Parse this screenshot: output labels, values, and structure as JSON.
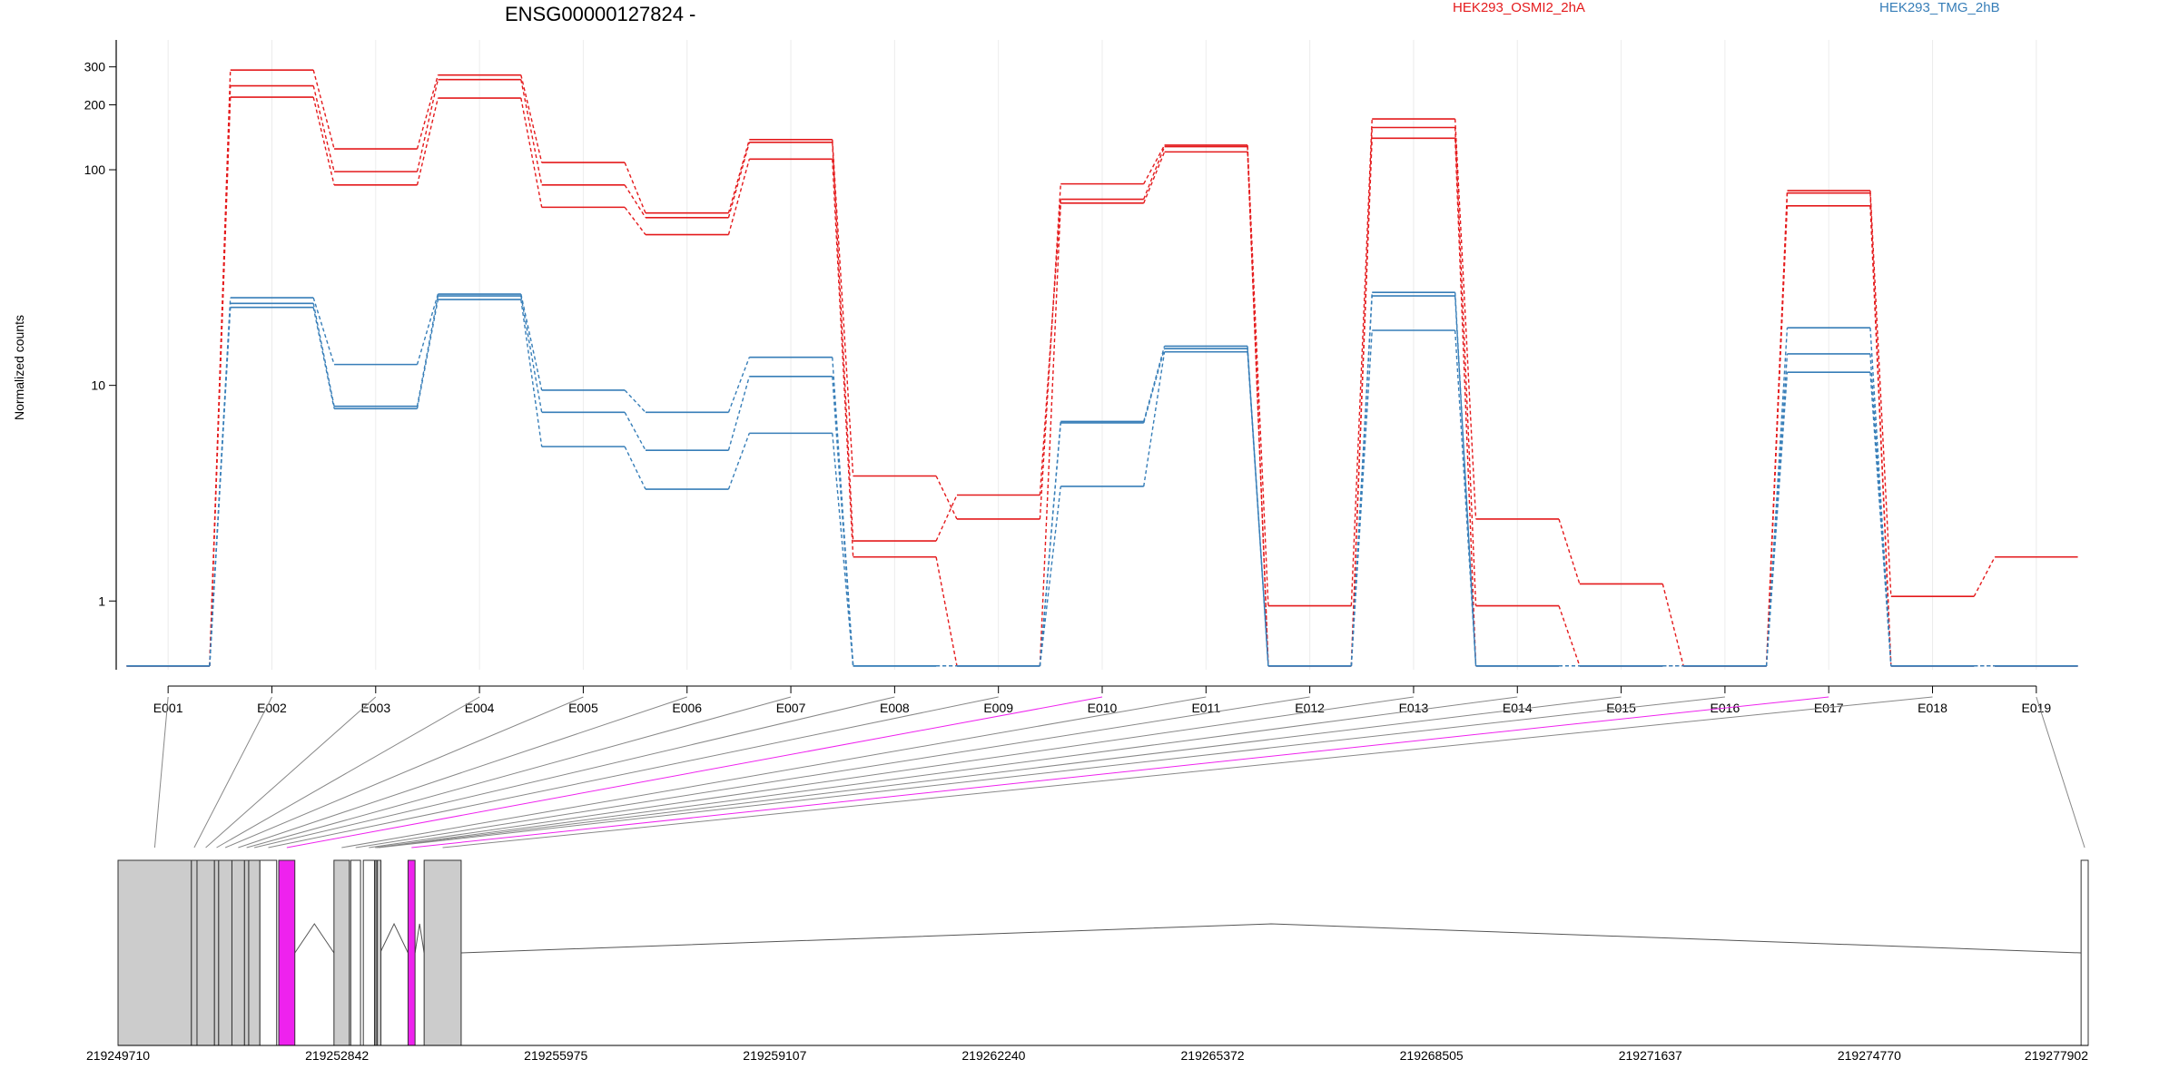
{
  "chart_data": {
    "type": "line",
    "title": "ENSG00000127824 -",
    "ylabel": "Normalized counts",
    "y_scale": "log",
    "ylim": [
      0.48,
      400
    ],
    "y_ticks": [
      1,
      10,
      100,
      200,
      300
    ],
    "grid": "vertical",
    "legend_position": "top",
    "colors": {
      "osmi": "#e41a1c",
      "tmg": "#377eb8",
      "spliced_exon": "#ee22ee",
      "exon_fill": "#cccccc"
    },
    "categories": [
      "E001",
      "E002",
      "E003",
      "E004",
      "E005",
      "E006",
      "E007",
      "E008",
      "E009",
      "E010",
      "E011",
      "E012",
      "E013",
      "E014",
      "E015",
      "E016",
      "E017",
      "E018",
      "E019"
    ],
    "legend": [
      {
        "label": "HEK293_OSMI2_2hA",
        "color": "#e41a1c"
      },
      {
        "label": "HEK293_TMG_2hB",
        "color": "#377eb8"
      }
    ],
    "series": [
      {
        "group": "HEK293_OSMI2_2hA",
        "values": [
          0.5,
          290,
          125,
          275,
          108,
          63,
          138,
          3.8,
          2.4,
          86,
          130,
          0.95,
          172,
          2.4,
          1.2,
          0.5,
          80,
          1.05,
          1.6
        ]
      },
      {
        "group": "HEK293_OSMI2_2hA",
        "values": [
          0.5,
          245,
          98,
          262,
          85,
          60,
          134,
          1.9,
          3.1,
          73,
          128,
          0.5,
          157,
          0.95,
          0.5,
          0.5,
          78,
          0.5,
          0.5
        ]
      },
      {
        "group": "HEK293_OSMI2_2hA",
        "values": [
          0.5,
          217,
          85,
          215,
          67,
          50,
          112,
          1.6,
          0.5,
          70,
          121,
          0.5,
          140,
          0.5,
          0.5,
          0.5,
          68,
          0.5,
          0.5
        ]
      },
      {
        "group": "HEK293_TMG_2hB",
        "values": [
          0.5,
          25.5,
          12.5,
          26.5,
          9.5,
          7.5,
          13.5,
          0.5,
          0.5,
          6.8,
          15.2,
          0.5,
          27,
          0.5,
          0.5,
          0.5,
          18.5,
          0.5,
          0.5
        ]
      },
      {
        "group": "HEK293_TMG_2hB",
        "values": [
          0.5,
          24,
          8,
          26,
          7.5,
          5,
          11,
          0.5,
          0.5,
          6.7,
          14.8,
          0.5,
          26,
          0.5,
          0.5,
          0.5,
          14,
          0.5,
          0.5
        ]
      },
      {
        "group": "HEK293_TMG_2hB",
        "values": [
          0.5,
          23,
          7.8,
          25,
          5.2,
          3.3,
          6,
          0.5,
          0.5,
          3.4,
          14.3,
          0.5,
          18,
          0.5,
          0.5,
          0.5,
          11.5,
          0.5,
          0.5
        ]
      }
    ],
    "gene_model": {
      "coordinate_ticks": [
        "219249710",
        "219252842",
        "219255975",
        "219259107",
        "219262240",
        "219265372",
        "219268505",
        "219271637",
        "219274770",
        "219277902"
      ],
      "axis_min": 219249710,
      "axis_max": 219277902,
      "exons": [
        {
          "id": "E001",
          "start": 219249710,
          "end": 219250760,
          "type": "normal"
        },
        {
          "id": "E002",
          "start": 219250760,
          "end": 219250840,
          "type": "normal"
        },
        {
          "id": "E003",
          "start": 219250840,
          "end": 219251090,
          "type": "normal"
        },
        {
          "id": "E004",
          "start": 219251090,
          "end": 219251150,
          "type": "normal"
        },
        {
          "id": "E005",
          "start": 219251150,
          "end": 219251340,
          "type": "normal"
        },
        {
          "id": "E006",
          "start": 219251340,
          "end": 219251520,
          "type": "normal"
        },
        {
          "id": "E007",
          "start": 219251520,
          "end": 219251580,
          "type": "normal"
        },
        {
          "id": "E008",
          "start": 219251580,
          "end": 219251740,
          "type": "normal"
        },
        {
          "id": "E009",
          "start": 219251740,
          "end": 219251980,
          "type": "plain"
        },
        {
          "id": "E010",
          "start": 219252010,
          "end": 219252240,
          "type": "spliced"
        },
        {
          "id": "E011",
          "start": 219252800,
          "end": 219253020,
          "type": "normal"
        },
        {
          "id": "E012",
          "start": 219253040,
          "end": 219253180,
          "type": "plain"
        },
        {
          "id": "E013",
          "start": 219253220,
          "end": 219253380,
          "type": "plain"
        },
        {
          "id": "E014",
          "start": 219253380,
          "end": 219253400,
          "type": "normal"
        },
        {
          "id": "E015",
          "start": 219253400,
          "end": 219253420,
          "type": "normal"
        },
        {
          "id": "E016",
          "start": 219253420,
          "end": 219253460,
          "type": "normal"
        },
        {
          "id": "E017",
          "start": 219253860,
          "end": 219253960,
          "type": "spliced"
        },
        {
          "id": "E018",
          "start": 219254090,
          "end": 219254620,
          "type": "normal"
        },
        {
          "id": "E019",
          "start": 219277800,
          "end": 219277902,
          "type": "plain"
        }
      ]
    }
  }
}
